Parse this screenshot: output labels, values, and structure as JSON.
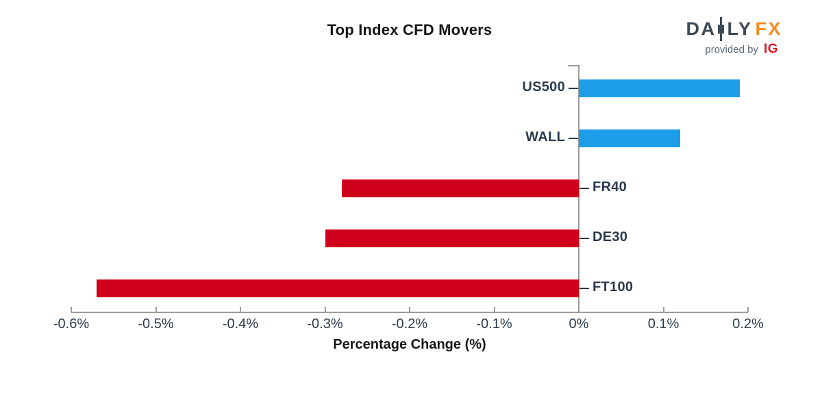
{
  "header": {
    "title": "Top Index CFD Movers"
  },
  "logo": {
    "daily_left": "DA",
    "daily_right": "LY",
    "fx": "FX",
    "provided_by": "provided by",
    "ig": "IG",
    "daily_color": "#3E4956",
    "fx_color": "#F68B1F",
    "ig_color": "#E0151D"
  },
  "chart_data": {
    "type": "bar",
    "orientation": "horizontal",
    "title": "Top Index CFD Movers",
    "xlabel": "Percentage Change (%)",
    "categories": [
      "US500",
      "WALL",
      "FR40",
      "DE30",
      "FT100"
    ],
    "values": [
      0.19,
      0.12,
      -0.28,
      -0.3,
      -0.57
    ],
    "xlim": [
      -0.6,
      0.2
    ],
    "xticks": [
      -0.6,
      -0.5,
      -0.4,
      -0.3,
      -0.2,
      -0.1,
      0,
      0.1,
      0.2
    ],
    "xtick_labels": [
      "-0.6%",
      "-0.5%",
      "-0.4%",
      "-0.3%",
      "-0.2%",
      "-0.1%",
      "0%",
      "0.1%",
      "0.2%"
    ],
    "legend": "none",
    "grid": "off",
    "colors": {
      "positive": "#1D9DE8",
      "negative": "#D0021B",
      "axis": "#9B9B9B",
      "labels": "#2B3A4F"
    }
  }
}
